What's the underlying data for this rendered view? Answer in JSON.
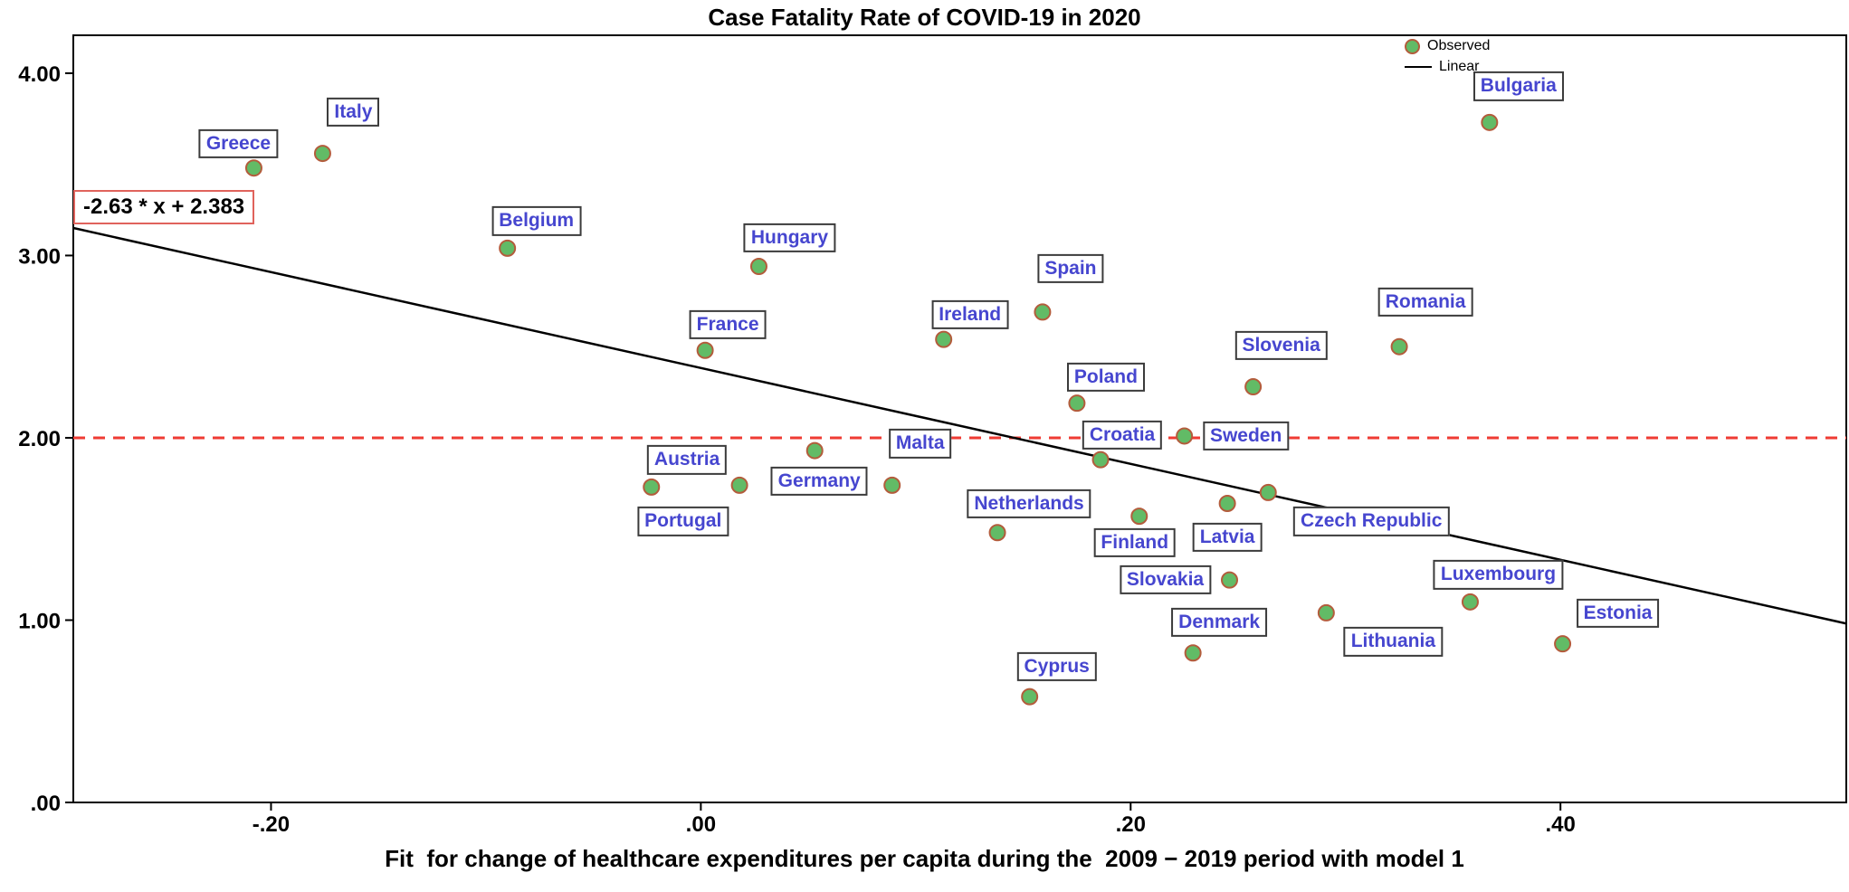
{
  "title": "Case Fatality Rate of COVID-19 in 2020",
  "x_axis_label": "Fit  for change of healthcare expenditures per capita during the  2009 − 2019 period with model 1",
  "equation_label": "-2.63 * x + 2.383",
  "legend": {
    "observed": "Observed",
    "linear": "Linear"
  },
  "colors": {
    "point_fill": "#62bb66",
    "point_stroke": "#b35c3c",
    "label_text": "#4646cf",
    "label_border": "#3b3b3b",
    "regression_line": "#000000",
    "reference_line": "#ef3b33",
    "equation_border": "#e0635c",
    "frame": "#000000"
  },
  "chart_data": {
    "type": "scatter",
    "title": "Case Fatality Rate of COVID-19 in 2020",
    "xlabel": "Fit  for change of healthcare expenditures per capita during the  2009 − 2019 period with model 1",
    "ylabel": "",
    "xlim": [
      -0.292,
      0.533
    ],
    "ylim": [
      0,
      4.208
    ],
    "grid": false,
    "legend_position": "top-right-inside",
    "x_ticks": [
      {
        "value": -0.2,
        "label": "-.20"
      },
      {
        "value": 0.0,
        "label": ".00"
      },
      {
        "value": 0.2,
        "label": ".20"
      },
      {
        "value": 0.4,
        "label": ".40"
      }
    ],
    "y_ticks": [
      {
        "value": 0,
        "label": ".00"
      },
      {
        "value": 1,
        "label": "1.00"
      },
      {
        "value": 2,
        "label": "2.00"
      },
      {
        "value": 3,
        "label": "3.00"
      },
      {
        "value": 4,
        "label": "4.00"
      }
    ],
    "regression": {
      "slope": -2.63,
      "intercept": 2.383,
      "equation": "-2.63 * x + 2.383"
    },
    "reference_line_y": 2.0,
    "points": [
      {
        "name": "Greece",
        "x": -0.208,
        "y": 3.48,
        "label_offset": [
          -17,
          -27
        ]
      },
      {
        "name": "Italy",
        "x": -0.176,
        "y": 3.56,
        "label_offset": [
          34,
          -46
        ]
      },
      {
        "name": "Bulgaria",
        "x": 0.367,
        "y": 3.73,
        "label_offset": [
          32,
          -40
        ]
      },
      {
        "name": "Belgium",
        "x": -0.09,
        "y": 3.04,
        "label_offset": [
          32,
          -30
        ]
      },
      {
        "name": "Hungary",
        "x": 0.027,
        "y": 2.94,
        "label_offset": [
          34,
          -32
        ]
      },
      {
        "name": "Spain",
        "x": 0.159,
        "y": 2.69,
        "label_offset": [
          31,
          -48
        ]
      },
      {
        "name": "Ireland",
        "x": 0.113,
        "y": 2.54,
        "label_offset": [
          29,
          -27
        ]
      },
      {
        "name": "France",
        "x": 0.002,
        "y": 2.48,
        "label_offset": [
          25,
          -28
        ]
      },
      {
        "name": "Romania",
        "x": 0.325,
        "y": 2.5,
        "label_offset": [
          29,
          -49
        ]
      },
      {
        "name": "Slovenia",
        "x": 0.257,
        "y": 2.28,
        "label_offset": [
          31,
          -46
        ]
      },
      {
        "name": "Poland",
        "x": 0.175,
        "y": 2.19,
        "label_offset": [
          32,
          -29
        ]
      },
      {
        "name": "Sweden",
        "x": 0.225,
        "y": 2.01,
        "label_offset": [
          68,
          0
        ]
      },
      {
        "name": "Croatia",
        "x": 0.186,
        "y": 1.88,
        "label_offset": [
          24,
          -27
        ]
      },
      {
        "name": "Germany",
        "x": 0.053,
        "y": 1.93,
        "label_offset": [
          5,
          34
        ]
      },
      {
        "name": "Malta",
        "x": 0.089,
        "y": 1.74,
        "label_offset": [
          31,
          -46
        ]
      },
      {
        "name": "Austria",
        "x": 0.018,
        "y": 1.74,
        "label_offset": [
          -58,
          -28
        ]
      },
      {
        "name": "Portugal",
        "x": -0.023,
        "y": 1.73,
        "label_offset": [
          35,
          38
        ]
      },
      {
        "name": "Netherlands",
        "x": 0.138,
        "y": 1.48,
        "label_offset": [
          35,
          -32
        ]
      },
      {
        "name": "Finland",
        "x": 0.204,
        "y": 1.57,
        "label_offset": [
          -5,
          29
        ]
      },
      {
        "name": "Latvia",
        "x": 0.245,
        "y": 1.64,
        "label_offset": [
          0,
          37
        ]
      },
      {
        "name": "Czech Republic",
        "x": 0.264,
        "y": 1.7,
        "label_offset": [
          114,
          32
        ]
      },
      {
        "name": "Slovakia",
        "x": 0.246,
        "y": 1.22,
        "label_offset": [
          -71,
          0
        ]
      },
      {
        "name": "Denmark",
        "x": 0.229,
        "y": 0.82,
        "label_offset": [
          29,
          -34
        ]
      },
      {
        "name": "Lithuania",
        "x": 0.291,
        "y": 1.04,
        "label_offset": [
          74,
          32
        ]
      },
      {
        "name": "Luxembourg",
        "x": 0.358,
        "y": 1.1,
        "label_offset": [
          31,
          -30
        ]
      },
      {
        "name": "Estonia",
        "x": 0.401,
        "y": 0.87,
        "label_offset": [
          61,
          -34
        ]
      },
      {
        "name": "Cyprus",
        "x": 0.153,
        "y": 0.58,
        "label_offset": [
          30,
          -33
        ]
      }
    ]
  }
}
